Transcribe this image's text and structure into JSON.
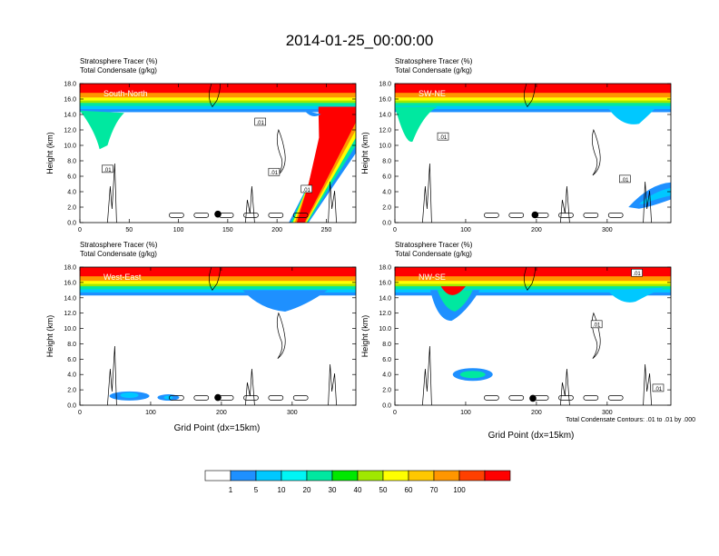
{
  "figure": {
    "title": "2014-01-25_00:00:00",
    "contour_note": "Total Condensate Contours: .01 to .01 by .000",
    "xlabel": "Grid Point (dx=15km)",
    "ylabel": "Height (km)",
    "panel_header_line1": "Stratosphere Tracer   (%)",
    "panel_header_line2": "Total Condensate   (g/kg)"
  },
  "colorbar": {
    "colors": [
      "#ffffff",
      "#1e90ff",
      "#00c8ff",
      "#00f5f5",
      "#00e8a0",
      "#00e800",
      "#a0e800",
      "#ffff00",
      "#ffc800",
      "#ff9600",
      "#ff4000",
      "#ff0000"
    ],
    "labels": [
      "1",
      "5",
      "10",
      "20",
      "30",
      "40",
      "50",
      "60",
      "70",
      "100"
    ]
  },
  "chart_data": [
    {
      "type": "heatmap",
      "name": "South-North",
      "xlim": [
        0,
        280
      ],
      "ylim": [
        0,
        18
      ],
      "x_ticks": [
        0,
        50,
        100,
        150,
        200,
        250
      ],
      "y_ticks": [
        "0.0",
        "2.0",
        "4.0",
        "6.0",
        "8.0",
        "10.0",
        "12.0",
        "14.0",
        "16.0",
        "18.0"
      ],
      "contour_labels": [
        {
          "text": ".01",
          "x": 183,
          "y": 13.0
        },
        {
          "text": ".01",
          "x": 28,
          "y": 6.9
        },
        {
          "text": ".01",
          "x": 197,
          "y": 6.5
        },
        {
          "text": ".01",
          "x": 230,
          "y": 4.3
        }
      ],
      "dot": {
        "x": 140,
        "y": 1.1
      }
    },
    {
      "type": "heatmap",
      "name": "SW-NE",
      "xlim": [
        0,
        390
      ],
      "ylim": [
        0,
        18
      ],
      "x_ticks": [
        0,
        100,
        200,
        300
      ],
      "y_ticks": [
        "0.0",
        "2.0",
        "4.0",
        "6.0",
        "8.0",
        "10.0",
        "12.0",
        "14.0",
        "16.0",
        "18.0"
      ],
      "contour_labels": [
        {
          "text": ".01",
          "x": 68,
          "y": 11.1
        },
        {
          "text": ".01",
          "x": 325,
          "y": 5.6
        }
      ],
      "dot": {
        "x": 198,
        "y": 1.0
      }
    },
    {
      "type": "heatmap",
      "name": "West-East",
      "xlim": [
        0,
        390
      ],
      "ylim": [
        0,
        18
      ],
      "x_ticks": [
        0,
        100,
        200,
        300
      ],
      "y_ticks": [
        "0.0",
        "2.0",
        "4.0",
        "6.0",
        "8.0",
        "10.0",
        "12.0",
        "14.0",
        "16.0",
        "18.0"
      ],
      "contour_labels": [],
      "dot": {
        "x": 195,
        "y": 1.0
      }
    },
    {
      "type": "heatmap",
      "name": "NW-SE",
      "xlim": [
        0,
        390
      ],
      "ylim": [
        0,
        18
      ],
      "x_ticks": [
        0,
        100,
        200,
        300
      ],
      "y_ticks": [
        "0.0",
        "2.0",
        "4.0",
        "6.0",
        "8.0",
        "10.0",
        "12.0",
        "14.0",
        "16.0",
        "18.0"
      ],
      "contour_labels": [
        {
          "text": ".01",
          "x": 342,
          "y": 17.2
        },
        {
          "text": ".01",
          "x": 285,
          "y": 10.5
        },
        {
          "text": ".01",
          "x": 372,
          "y": 2.2
        }
      ],
      "dot": {
        "x": 195,
        "y": 0.9
      }
    }
  ]
}
